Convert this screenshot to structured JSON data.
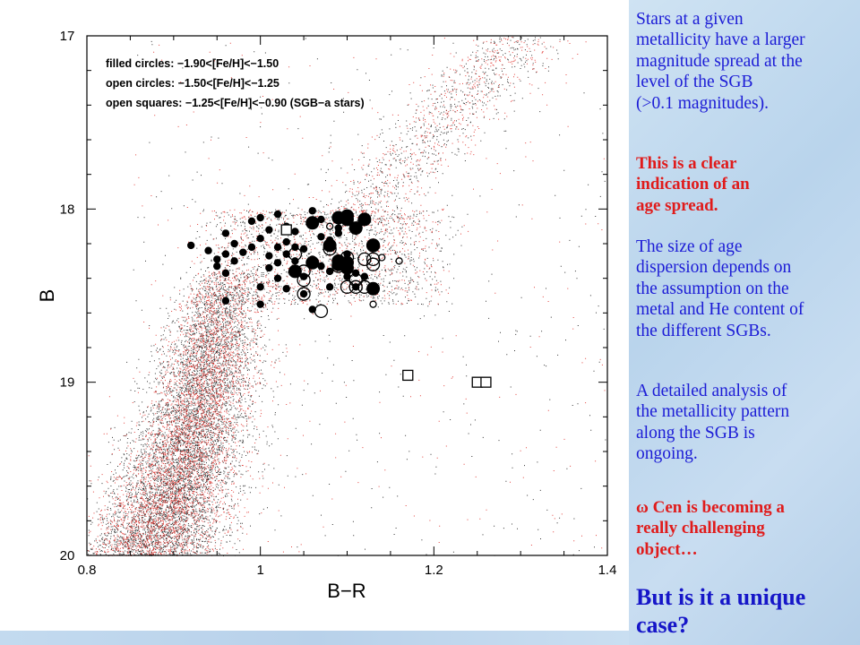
{
  "panel": {
    "para1": [
      "Stars at a given",
      "metallicity have a larger",
      "magnitude spread at the",
      "level of the SGB",
      "(>0.1 magnitudes)."
    ],
    "para2": [
      "This is a clear",
      "indication of an",
      "age spread."
    ],
    "para3": [
      "The size of age",
      "dispersion depends on",
      "the assumption on the",
      "metal and He content of",
      "the different SGBs."
    ],
    "para4": [
      "A detailed analysis of",
      "the metallicity pattern",
      "along the SGB is",
      "ongoing."
    ],
    "para5": [
      "ω Cen is becoming a",
      "really challenging",
      "object…"
    ],
    "para6": [
      "But is it a unique",
      "case?"
    ]
  },
  "colors": {
    "blue_text": "#1c1cd6",
    "red_text": "#e01b1b",
    "red_points": "#e0302a",
    "black_points": "#000000"
  },
  "chart_data": {
    "type": "scatter",
    "xlabel": "B−R",
    "ylabel": "B",
    "xlim": [
      0.8,
      1.4
    ],
    "ylim": [
      20,
      17
    ],
    "y_inverted": true,
    "x_ticks": [
      "0.8",
      "1",
      "1.2",
      "1.4"
    ],
    "y_ticks": [
      "17",
      "18",
      "19",
      "20"
    ],
    "legend_placement": "top-left",
    "legend": [
      "filled circles: −1.90<[Fe/H]<−1.50",
      "open circles: −1.50<[Fe/H]<−1.25",
      "open squares: −1.25<[Fe/H]<−0.90 (SGB−a stars)"
    ],
    "filled_circles": [
      [
        0.92,
        18.21
      ],
      [
        0.94,
        18.24
      ],
      [
        0.95,
        18.29
      ],
      [
        0.95,
        18.33
      ],
      [
        0.96,
        18.37
      ],
      [
        0.96,
        18.26
      ],
      [
        0.97,
        18.2
      ],
      [
        0.97,
        18.3
      ],
      [
        0.96,
        18.14
      ],
      [
        0.98,
        18.25
      ],
      [
        0.99,
        18.22
      ],
      [
        0.99,
        18.07
      ],
      [
        1.0,
        18.17
      ],
      [
        1.0,
        18.05
      ],
      [
        1.01,
        18.27
      ],
      [
        1.01,
        18.34
      ],
      [
        1.01,
        18.12
      ],
      [
        1.02,
        18.22
      ],
      [
        1.02,
        18.31
      ],
      [
        1.02,
        18.03
      ],
      [
        1.03,
        18.19
      ],
      [
        1.03,
        18.26
      ],
      [
        1.03,
        18.1
      ],
      [
        1.04,
        18.13
      ],
      [
        1.04,
        18.22
      ],
      [
        1.04,
        18.36
      ],
      [
        0.96,
        18.53
      ],
      [
        1.0,
        18.55
      ],
      [
        1.0,
        18.45
      ],
      [
        1.02,
        18.4
      ],
      [
        1.03,
        18.46
      ],
      [
        1.04,
        18.3
      ],
      [
        1.05,
        18.23
      ],
      [
        1.05,
        18.39
      ],
      [
        1.06,
        18.29
      ],
      [
        1.07,
        18.16
      ],
      [
        1.08,
        18.18
      ],
      [
        1.08,
        18.45
      ],
      [
        1.08,
        18.36
      ],
      [
        1.09,
        18.32
      ],
      [
        1.1,
        18.26
      ],
      [
        1.1,
        18.39
      ],
      [
        1.11,
        18.37
      ],
      [
        1.05,
        18.49
      ],
      [
        1.06,
        18.58
      ],
      [
        1.11,
        18.45
      ],
      [
        1.12,
        18.39
      ],
      [
        1.09,
        18.11
      ],
      [
        1.06,
        18.01
      ],
      [
        1.07,
        18.06
      ],
      [
        1.07,
        18.33
      ],
      [
        1.09,
        18.14
      ]
    ],
    "filled_circles_large": [
      [
        1.06,
        18.08
      ],
      [
        1.09,
        18.05
      ],
      [
        1.1,
        18.06
      ],
      [
        1.1,
        18.04
      ],
      [
        1.11,
        18.11
      ],
      [
        1.12,
        18.06
      ],
      [
        1.09,
        18.3
      ],
      [
        1.1,
        18.34
      ],
      [
        1.09,
        18.32
      ],
      [
        1.13,
        18.21
      ],
      [
        1.13,
        18.46
      ],
      [
        1.08,
        18.21
      ],
      [
        1.1,
        18.31
      ],
      [
        1.04,
        18.36
      ],
      [
        1.06,
        18.31
      ]
    ],
    "open_circles": [
      [
        1.04,
        18.26
      ],
      [
        1.05,
        18.36
      ],
      [
        1.05,
        18.41
      ],
      [
        1.09,
        18.33
      ],
      [
        1.08,
        18.23
      ],
      [
        1.1,
        18.28
      ],
      [
        1.12,
        18.29
      ],
      [
        1.13,
        18.29
      ],
      [
        1.11,
        18.41
      ],
      [
        1.13,
        18.32
      ],
      [
        1.13,
        18.21
      ],
      [
        1.05,
        18.49
      ],
      [
        1.07,
        18.59
      ],
      [
        1.1,
        18.45
      ],
      [
        1.11,
        18.45
      ],
      [
        1.12,
        18.45
      ],
      [
        1.14,
        18.28
      ],
      [
        1.16,
        18.3
      ],
      [
        1.08,
        18.1
      ],
      [
        1.13,
        18.55
      ]
    ],
    "open_squares": [
      [
        1.03,
        18.12
      ],
      [
        1.17,
        18.96
      ],
      [
        1.25,
        19.0
      ],
      [
        1.26,
        19.0
      ]
    ]
  }
}
